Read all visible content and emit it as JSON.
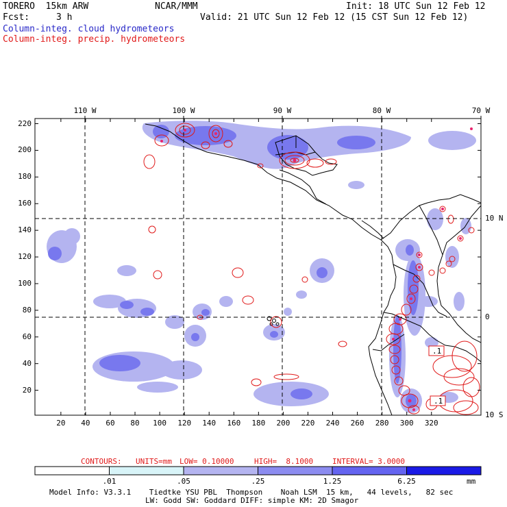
{
  "header": {
    "model": "TORERO  15km ARW",
    "center": "NCAR/MMM",
    "init": "Init: 18 UTC Sun 12 Feb 12",
    "fcst_label": "Fcst:",
    "fcst_value": "3 h",
    "valid": "Valid: 21 UTC Sun 12 Feb 12 (15 CST Sun 12 Feb 12)",
    "legend_cloud": "Column-integ. cloud hydrometeors",
    "legend_precip": "Column-integ. precip. hydrometeors"
  },
  "colors": {
    "cloud_series": "#2828c8",
    "precip_series": "#e01818",
    "colorbar_levels": [
      "#ffffff",
      "#d8f4f8",
      "#b4b4f0",
      "#8c8cf0",
      "#6464f0",
      "#1a1ae6"
    ]
  },
  "map": {
    "lon_labels": [
      "110 W",
      "100 W",
      "90 W",
      "80 W",
      "70 W"
    ],
    "lat_labels": [
      "10 N",
      "0",
      "10 S"
    ],
    "y_ticks": [
      "220",
      "200",
      "180",
      "160",
      "140",
      "120",
      "100",
      "80",
      "60",
      "40",
      "20"
    ],
    "x_ticks": [
      "20",
      "40",
      "60",
      "80",
      "100",
      "120",
      "140",
      "160",
      "180",
      "200",
      "220",
      "240",
      "260",
      "280",
      "300",
      "320"
    ],
    "box_labels": [
      ".1",
      ".1"
    ]
  },
  "contours_info": {
    "label": "CONTOURS:",
    "units": "UNITS=mm",
    "low": "LOW= 0.10000",
    "high": "HIGH=  8.1000",
    "interval": "INTERVAL= 3.0000"
  },
  "colorbar": {
    "labels": [
      ".01",
      ".05",
      ".25",
      "1.25",
      "6.25"
    ],
    "unit": "mm"
  },
  "footer": {
    "line1": "Model Info: V3.3.1    Tiedtke YSU PBL  Thompson    Noah LSM  15 km,   44 levels,   82 sec",
    "line2": "LW: Godd SW: Goddard DIFF: simple KM: 2D Smagor"
  }
}
